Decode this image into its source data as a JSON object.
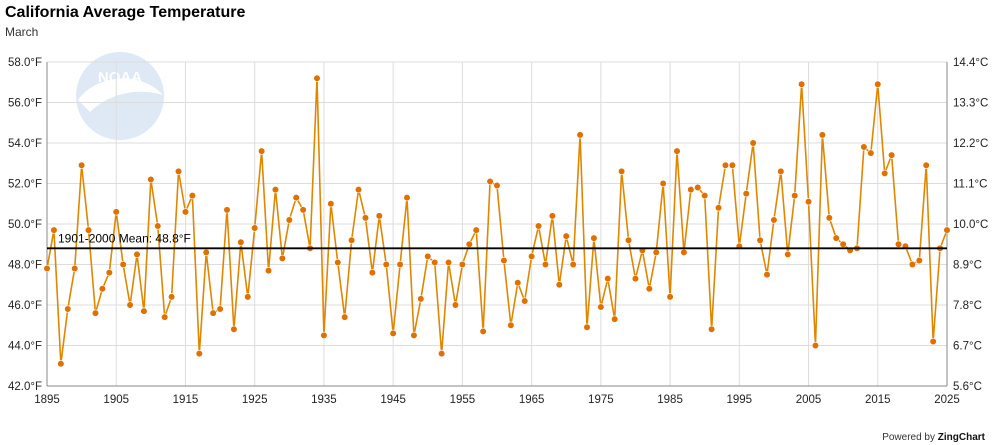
{
  "chart_data": {
    "type": "line",
    "title": "California Average Temperature",
    "subtitle": "March",
    "x_start": 1895,
    "values": [
      47.8,
      49.7,
      43.1,
      45.8,
      47.8,
      52.9,
      49.7,
      45.6,
      46.8,
      47.6,
      50.6,
      48.0,
      46.0,
      48.5,
      45.7,
      52.2,
      49.9,
      45.4,
      46.4,
      52.6,
      50.6,
      51.4,
      43.6,
      48.6,
      45.6,
      45.8,
      50.7,
      44.8,
      49.1,
      46.4,
      49.8,
      53.6,
      47.7,
      51.7,
      48.3,
      50.2,
      51.3,
      50.7,
      48.8,
      57.2,
      44.5,
      51.0,
      48.1,
      45.4,
      49.2,
      51.7,
      50.3,
      47.6,
      50.4,
      48.0,
      44.6,
      48.0,
      51.3,
      44.5,
      46.3,
      48.4,
      48.1,
      43.6,
      48.1,
      46.0,
      48.0,
      49.0,
      49.7,
      44.7,
      52.1,
      51.9,
      48.2,
      45.0,
      47.1,
      46.2,
      48.4,
      49.9,
      48.0,
      50.4,
      47.0,
      49.4,
      48.0,
      54.4,
      44.9,
      49.3,
      45.9,
      47.3,
      45.3,
      52.6,
      49.2,
      47.3,
      48.7,
      46.8,
      48.6,
      52.0,
      46.4,
      53.6,
      48.6,
      51.7,
      51.8,
      51.4,
      44.8,
      50.8,
      52.9,
      52.9,
      48.9,
      51.5,
      54.0,
      49.2,
      47.5,
      50.2,
      52.6,
      48.5,
      51.4,
      56.9,
      51.1,
      44.0,
      54.4,
      50.3,
      49.3,
      49.0,
      48.7,
      48.8,
      53.8,
      53.5,
      56.9,
      52.5,
      53.4,
      49.0,
      48.9,
      48.0,
      48.2,
      52.9,
      44.2,
      48.8,
      49.7
    ],
    "mean": 48.8,
    "mean_label": "1901-2000 Mean: 48.8°F",
    "x_ticks": [
      "1895",
      "1905",
      "1915",
      "1925",
      "1935",
      "1945",
      "1955",
      "1965",
      "1975",
      "1985",
      "1995",
      "2005",
      "2015",
      "2025"
    ],
    "x_range": [
      1895,
      2025
    ],
    "y_left_ticks": [
      "42.0°F",
      "44.0°F",
      "46.0°F",
      "48.0°F",
      "50.0°F",
      "52.0°F",
      "54.0°F",
      "56.0°F",
      "58.0°F"
    ],
    "y_left_range": [
      42,
      58
    ],
    "y_right_ticks": [
      "5.6°C",
      "6.7°C",
      "7.8°C",
      "8.9°C",
      "10.0°C",
      "11.1°C",
      "12.2°C",
      "13.3°C",
      "14.4°C"
    ],
    "grid": true,
    "colors": {
      "line": "#e08700",
      "marker": "#e07000",
      "mean_line": "#000000",
      "grid": "#dddddd"
    }
  },
  "logo": {
    "text": "NOAA"
  },
  "footer": {
    "powered_prefix": "Powered by ",
    "powered_brand": "ZingChart"
  }
}
